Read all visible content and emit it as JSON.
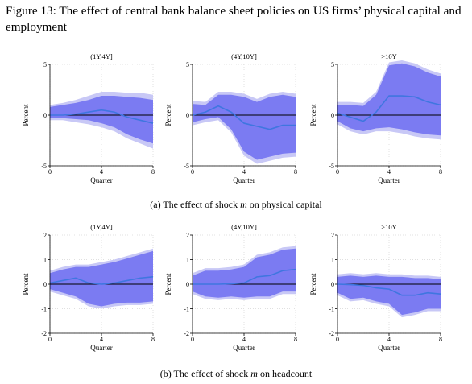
{
  "figure": {
    "title": "Figure 13: The effect of central bank balance sheet policies on US firms’ physical capital and employment"
  },
  "captions": {
    "a": {
      "prefix": "(a) The effect of shock ",
      "var": "m",
      "suffix": " on physical capital"
    },
    "b": {
      "prefix": "(b) The effect of shock ",
      "var": "m",
      "suffix": " on headcount"
    }
  },
  "colors": {
    "line": "#3f76e0",
    "band_inner": "#7b7bf2",
    "band_outer": "#c8c8f6",
    "zero_line": "#000000"
  },
  "chart_data": [
    {
      "type": "area",
      "panel": "a",
      "title": "(1Y,4Y]",
      "xlabel": "Quarter",
      "ylabel": "Percent",
      "xlim": [
        0,
        8
      ],
      "ylim": [
        -5,
        5
      ],
      "xticks": [
        0,
        4,
        8
      ],
      "yticks": [
        5,
        0,
        -5
      ],
      "x": [
        0,
        1,
        2,
        3,
        4,
        5,
        6,
        7,
        8
      ],
      "series": [
        {
          "role": "point_estimate",
          "values": [
            0,
            0,
            0.1,
            0.3,
            0.5,
            0.3,
            -0.2,
            -0.5,
            -0.8
          ]
        },
        {
          "role": "inner_band_upper",
          "values": [
            0.8,
            1,
            1.2,
            1.5,
            1.9,
            1.9,
            1.8,
            1.7,
            1.5
          ]
        },
        {
          "role": "inner_band_lower",
          "values": [
            -0.3,
            -0.3,
            -0.4,
            -0.5,
            -0.8,
            -1.2,
            -1.9,
            -2.4,
            -2.8
          ]
        },
        {
          "role": "outer_band_upper",
          "values": [
            1,
            1.2,
            1.5,
            1.9,
            2.3,
            2.3,
            2.2,
            2.2,
            2
          ]
        },
        {
          "role": "outer_band_lower",
          "values": [
            -0.5,
            -0.5,
            -0.7,
            -0.9,
            -1.2,
            -1.6,
            -2.3,
            -2.8,
            -3.3
          ]
        }
      ]
    },
    {
      "type": "area",
      "panel": "a",
      "title": "(4Y,10Y]",
      "xlabel": "Quarter",
      "ylabel": "Percent",
      "xlim": [
        0,
        8
      ],
      "ylim": [
        -5,
        5
      ],
      "xticks": [
        0,
        4,
        8
      ],
      "yticks": [
        5,
        0,
        -5
      ],
      "x": [
        0,
        1,
        2,
        3,
        4,
        5,
        6,
        7,
        8
      ],
      "series": [
        {
          "role": "point_estimate",
          "values": [
            0,
            0.3,
            0.9,
            0.3,
            -0.8,
            -1.1,
            -1.4,
            -1,
            -1
          ]
        },
        {
          "role": "inner_band_upper",
          "values": [
            1.1,
            1,
            2,
            2,
            1.8,
            1.3,
            1.8,
            2,
            1.8
          ]
        },
        {
          "role": "inner_band_lower",
          "values": [
            -0.7,
            -0.4,
            -0.2,
            -1.4,
            -3.6,
            -4.4,
            -4.1,
            -3.8,
            -3.7
          ]
        },
        {
          "role": "outer_band_upper",
          "values": [
            1.4,
            1.3,
            2.3,
            2.3,
            2.1,
            1.6,
            2.1,
            2.3,
            2.1
          ]
        },
        {
          "role": "outer_band_lower",
          "values": [
            -1,
            -0.7,
            -0.5,
            -1.7,
            -4,
            -4.8,
            -4.5,
            -4.2,
            -4.1
          ]
        }
      ]
    },
    {
      "type": "area",
      "panel": "a",
      "title": ">10Y",
      "xlabel": "Quarter",
      "ylabel": "Percent",
      "xlim": [
        0,
        8
      ],
      "ylim": [
        -5,
        5
      ],
      "xticks": [
        0,
        4,
        8
      ],
      "yticks": [
        5,
        0,
        -5
      ],
      "x": [
        0,
        1,
        2,
        3,
        4,
        5,
        6,
        7,
        8
      ],
      "series": [
        {
          "role": "point_estimate",
          "values": [
            0.2,
            -0.2,
            -0.6,
            0.3,
            1.9,
            1.9,
            1.8,
            1.3,
            1
          ]
        },
        {
          "role": "inner_band_upper",
          "values": [
            1,
            1,
            0.9,
            2,
            4.9,
            5.1,
            4.8,
            4.2,
            3.8
          ]
        },
        {
          "role": "inner_band_lower",
          "values": [
            -0.6,
            -1.3,
            -1.6,
            -1.3,
            -1.2,
            -1.4,
            -1.7,
            -1.9,
            -2
          ]
        },
        {
          "role": "outer_band_upper",
          "values": [
            1.3,
            1.3,
            1.2,
            2.3,
            5.2,
            5.4,
            5.1,
            4.5,
            4.1
          ]
        },
        {
          "role": "outer_band_lower",
          "values": [
            -0.9,
            -1.6,
            -1.9,
            -1.6,
            -1.6,
            -1.8,
            -2.1,
            -2.3,
            -2.4
          ]
        }
      ]
    },
    {
      "type": "area",
      "panel": "b",
      "title": "(1Y,4Y]",
      "xlabel": "Quarter",
      "ylabel": "Percent",
      "xlim": [
        0,
        8
      ],
      "ylim": [
        -2,
        2
      ],
      "xticks": [
        0,
        4,
        8
      ],
      "yticks": [
        2,
        1,
        0,
        -1,
        -2
      ],
      "x": [
        0,
        1,
        2,
        3,
        4,
        5,
        6,
        7,
        8
      ],
      "series": [
        {
          "role": "point_estimate",
          "values": [
            0.05,
            0.15,
            0.25,
            0.05,
            0,
            0.05,
            0.15,
            0.25,
            0.3
          ]
        },
        {
          "role": "inner_band_upper",
          "values": [
            0.45,
            0.6,
            0.7,
            0.7,
            0.8,
            0.9,
            1.05,
            1.2,
            1.35
          ]
        },
        {
          "role": "inner_band_lower",
          "values": [
            -0.2,
            -0.35,
            -0.5,
            -0.8,
            -0.9,
            -0.8,
            -0.75,
            -0.75,
            -0.7
          ]
        },
        {
          "role": "outer_band_upper",
          "values": [
            0.55,
            0.7,
            0.8,
            0.8,
            0.9,
            1.0,
            1.15,
            1.3,
            1.45
          ]
        },
        {
          "role": "outer_band_lower",
          "values": [
            -0.3,
            -0.45,
            -0.6,
            -0.9,
            -1.0,
            -0.9,
            -0.85,
            -0.85,
            -0.8
          ]
        }
      ]
    },
    {
      "type": "area",
      "panel": "b",
      "title": "(4Y,10Y]",
      "xlabel": "Quarter",
      "ylabel": "Percent",
      "xlim": [
        0,
        8
      ],
      "ylim": [
        -2,
        2
      ],
      "xticks": [
        0,
        4,
        8
      ],
      "yticks": [
        2,
        1,
        0,
        -1,
        -2
      ],
      "x": [
        0,
        1,
        2,
        3,
        4,
        5,
        6,
        7,
        8
      ],
      "series": [
        {
          "role": "point_estimate",
          "values": [
            0,
            0,
            0,
            0.02,
            0.05,
            0.3,
            0.35,
            0.55,
            0.6
          ]
        },
        {
          "role": "inner_band_upper",
          "values": [
            0.35,
            0.55,
            0.55,
            0.6,
            0.7,
            1.1,
            1.2,
            1.4,
            1.45
          ]
        },
        {
          "role": "inner_band_lower",
          "values": [
            -0.3,
            -0.5,
            -0.55,
            -0.5,
            -0.55,
            -0.5,
            -0.5,
            -0.3,
            -0.3
          ]
        },
        {
          "role": "outer_band_upper",
          "values": [
            0.45,
            0.65,
            0.65,
            0.7,
            0.8,
            1.2,
            1.3,
            1.5,
            1.55
          ]
        },
        {
          "role": "outer_band_lower",
          "values": [
            -0.4,
            -0.6,
            -0.65,
            -0.6,
            -0.65,
            -0.6,
            -0.6,
            -0.4,
            -0.4
          ]
        }
      ]
    },
    {
      "type": "area",
      "panel": "b",
      "title": ">10Y",
      "xlabel": "Quarter",
      "ylabel": "Percent",
      "xlim": [
        0,
        8
      ],
      "ylim": [
        -2,
        2
      ],
      "xticks": [
        0,
        4,
        8
      ],
      "yticks": [
        2,
        1,
        0,
        -1,
        -2
      ],
      "x": [
        0,
        1,
        2,
        3,
        4,
        5,
        6,
        7,
        8
      ],
      "series": [
        {
          "role": "point_estimate",
          "values": [
            0,
            -0.02,
            -0.05,
            -0.15,
            -0.2,
            -0.45,
            -0.45,
            -0.35,
            -0.4
          ]
        },
        {
          "role": "inner_band_upper",
          "values": [
            0.3,
            0.35,
            0.3,
            0.35,
            0.3,
            0.3,
            0.25,
            0.25,
            0.2
          ]
        },
        {
          "role": "inner_band_lower",
          "values": [
            -0.35,
            -0.6,
            -0.55,
            -0.7,
            -0.8,
            -1.25,
            -1.15,
            -1.0,
            -1.0
          ]
        },
        {
          "role": "outer_band_upper",
          "values": [
            0.4,
            0.45,
            0.4,
            0.45,
            0.4,
            0.4,
            0.35,
            0.35,
            0.3
          ]
        },
        {
          "role": "outer_band_lower",
          "values": [
            -0.45,
            -0.7,
            -0.65,
            -0.8,
            -0.9,
            -1.35,
            -1.25,
            -1.1,
            -1.1
          ]
        }
      ]
    }
  ]
}
